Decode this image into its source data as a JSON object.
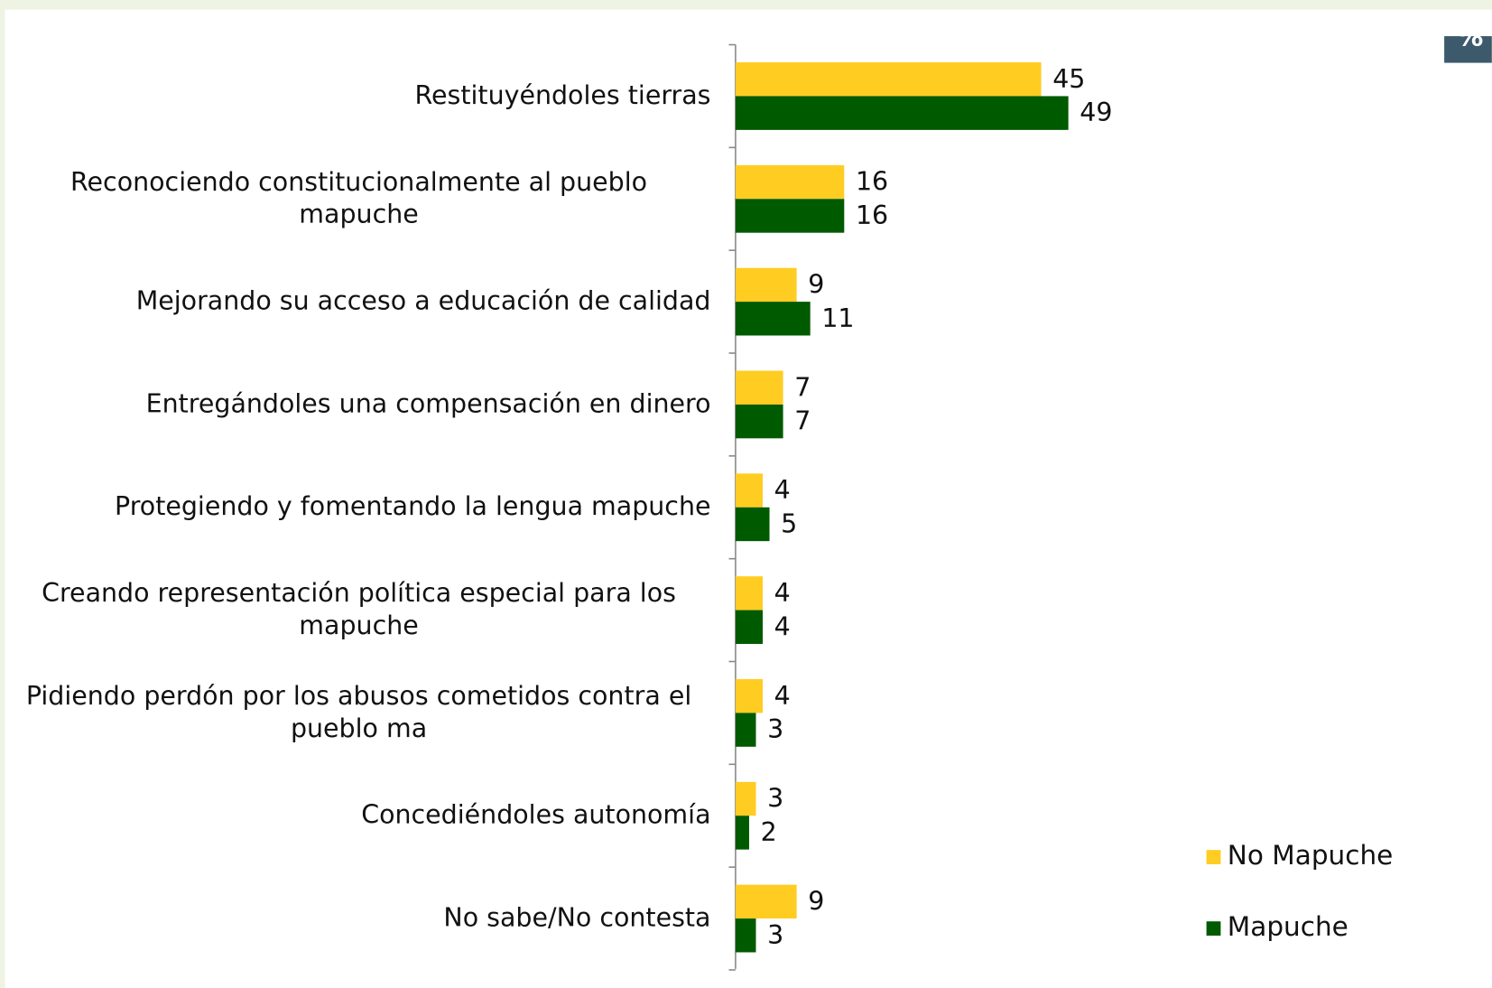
{
  "chart_data": {
    "type": "bar",
    "orientation": "horizontal",
    "annotation": "%",
    "categories": [
      "Restituyéndoles tierras",
      "Reconociendo constitucionalmente al pueblo mapuche",
      "Mejorando su acceso a educación de calidad",
      "Entregándoles una compensación en dinero",
      "Protegiendo y fomentando la lengua mapuche",
      "Creando representación política especial para los mapuche",
      "Pidiendo perdón por los abusos cometidos contra el pueblo ma",
      "Concediéndoles autonomía",
      "No sabe/No contesta"
    ],
    "series": [
      {
        "name": "No Mapuche",
        "color": "#ffcc22",
        "values": [
          45,
          16,
          9,
          7,
          4,
          4,
          4,
          3,
          9
        ]
      },
      {
        "name": "Mapuche",
        "color": "#005a00",
        "values": [
          49,
          16,
          11,
          7,
          5,
          4,
          3,
          2,
          3
        ]
      }
    ],
    "xlim": [
      0,
      100
    ],
    "legend": "bottom-right"
  }
}
